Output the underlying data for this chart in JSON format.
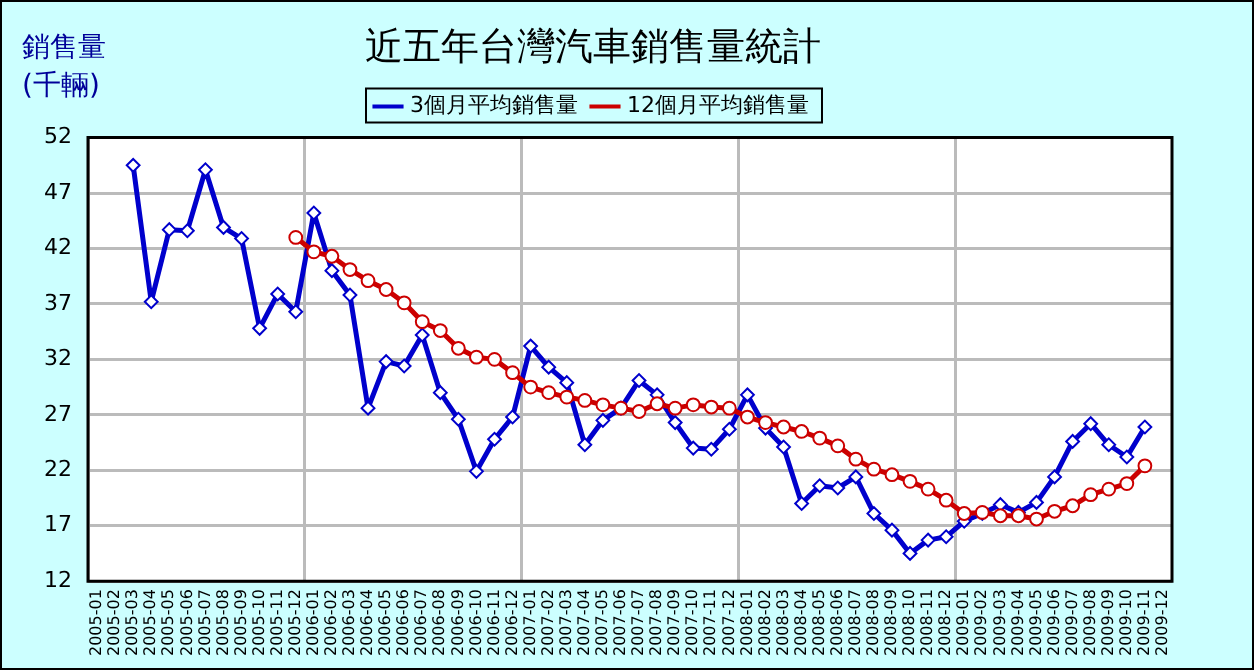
{
  "chart_data": {
    "type": "line",
    "title": "近五年台灣汽車銷售量統計",
    "ylabel": "銷售量\n(千輛)",
    "categories": [
      "2005-01",
      "2005-02",
      "2005-03",
      "2005-04",
      "2005-05",
      "2005-06",
      "2005-07",
      "2005-08",
      "2005-09",
      "2005-10",
      "2005-11",
      "2005-12",
      "2006-01",
      "2006-02",
      "2006-03",
      "2006-04",
      "2006-05",
      "2006-06",
      "2006-07",
      "2006-08",
      "2006-09",
      "2006-10",
      "2006-11",
      "2006-12",
      "2007-01",
      "2007-02",
      "2007-03",
      "2007-04",
      "2007-05",
      "2007-06",
      "2007-07",
      "2007-08",
      "2007-09",
      "2007-10",
      "2007-11",
      "2007-12",
      "2008-01",
      "2008-02",
      "2008-03",
      "2008-04",
      "2008-05",
      "2008-06",
      "2008-07",
      "2008-08",
      "2008-09",
      "2008-10",
      "2008-11",
      "2008-12",
      "2009-01",
      "2009-02",
      "2009-03",
      "2009-04",
      "2009-05",
      "2009-06",
      "2009-07",
      "2009-08",
      "2009-09",
      "2009-10",
      "2009-11",
      "2009-12"
    ],
    "series": [
      {
        "name": "3個月平均銷售量",
        "color": "#0000cc",
        "marker": "diamond",
        "values": [
          null,
          null,
          49.5,
          37.2,
          43.7,
          43.6,
          49.1,
          43.9,
          42.9,
          34.8,
          37.9,
          36.3,
          45.2,
          40.0,
          37.8,
          27.6,
          31.8,
          31.4,
          34.2,
          29.0,
          26.6,
          21.9,
          24.8,
          26.8,
          33.2,
          31.3,
          29.9,
          24.3,
          26.5,
          27.6,
          30.1,
          28.8,
          26.3,
          24.0,
          23.9,
          25.7,
          28.8,
          25.8,
          24.1,
          19.0,
          20.6,
          20.4,
          21.4,
          18.1,
          16.6,
          14.5,
          15.7,
          16.0,
          17.4,
          18.1,
          18.9,
          18.2,
          19.1,
          21.4,
          24.6,
          26.2,
          24.3,
          23.2,
          25.9,
          null
        ]
      },
      {
        "name": "12個月平均銷售量",
        "color": "#cc0000",
        "marker": "circle",
        "values": [
          null,
          null,
          null,
          null,
          null,
          null,
          null,
          null,
          null,
          null,
          null,
          43.0,
          41.7,
          41.3,
          40.1,
          39.1,
          38.3,
          37.1,
          35.4,
          34.6,
          33.0,
          32.2,
          32.0,
          30.8,
          29.5,
          29.0,
          28.6,
          28.3,
          27.9,
          27.6,
          27.3,
          28.0,
          27.6,
          27.9,
          27.7,
          27.6,
          26.8,
          26.3,
          25.9,
          25.5,
          24.9,
          24.2,
          23.0,
          22.1,
          21.6,
          21.0,
          20.3,
          19.3,
          18.1,
          18.2,
          17.9,
          17.9,
          17.6,
          18.3,
          18.8,
          19.8,
          20.3,
          20.8,
          22.4,
          null
        ]
      }
    ],
    "ylim": [
      12,
      52
    ],
    "yticks": [
      12,
      17,
      22,
      27,
      32,
      37,
      42,
      47,
      52
    ],
    "grid": true,
    "legend": "top",
    "line_style": "solid"
  }
}
